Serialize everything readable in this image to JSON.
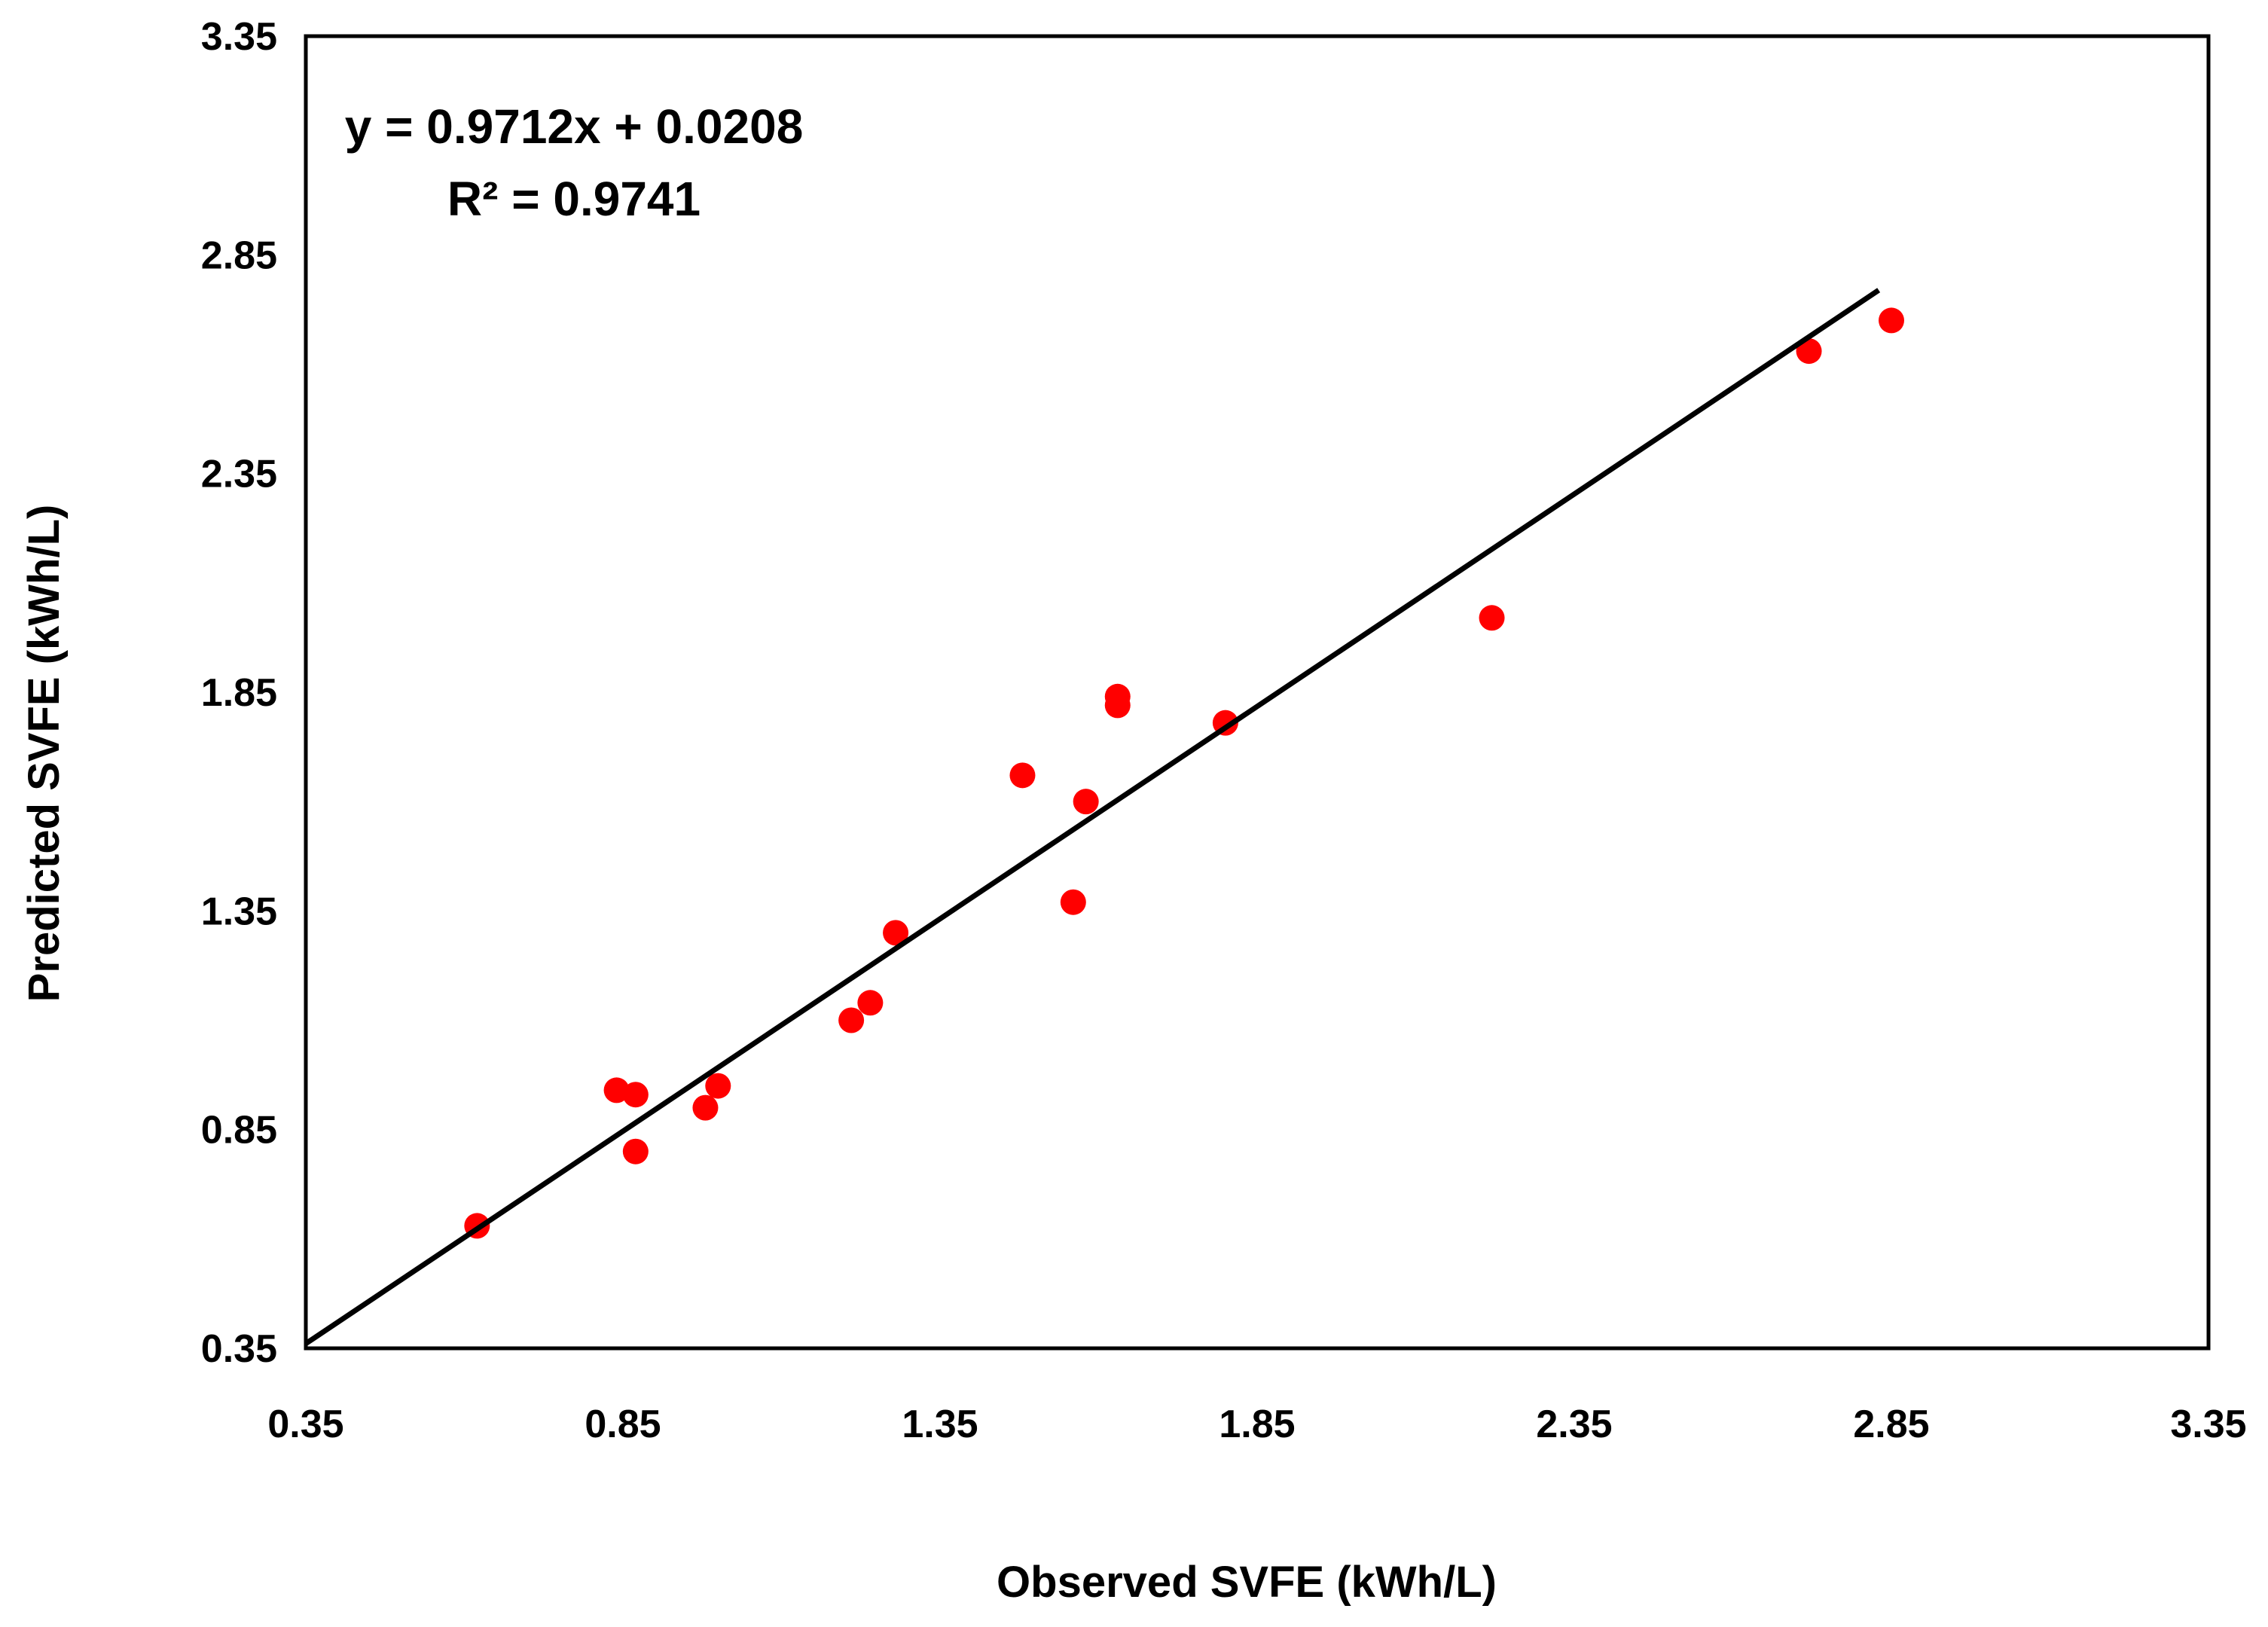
{
  "chart_data": {
    "type": "scatter",
    "xlabel": "Observed SVFE (kWh/L)",
    "ylabel": "Predicted SVFE (kWh/L)",
    "xlim": [
      0.35,
      3.35
    ],
    "ylim": [
      0.35,
      3.35
    ],
    "x_ticks": [
      "0.35",
      "0.85",
      "1.35",
      "1.85",
      "2.35",
      "2.85",
      "3.35"
    ],
    "y_ticks": [
      "0.35",
      "0.85",
      "1.35",
      "1.85",
      "2.35",
      "2.85",
      "3.35"
    ],
    "grid": false,
    "point_color": "#ff0000",
    "line_color": "#000000",
    "trendline": {
      "slope": 0.9712,
      "intercept": 0.0208,
      "x_range": [
        0.35,
        2.83
      ],
      "equation": "y = 0.9712x + 0.0208",
      "r_squared": "R² = 0.9741"
    },
    "series": [
      {
        "name": "SVFE",
        "points": [
          [
            0.62,
            0.63
          ],
          [
            0.84,
            0.94
          ],
          [
            0.87,
            0.93
          ],
          [
            0.87,
            0.8
          ],
          [
            0.98,
            0.9
          ],
          [
            1.0,
            0.95
          ],
          [
            1.21,
            1.1
          ],
          [
            1.24,
            1.14
          ],
          [
            1.28,
            1.3
          ],
          [
            1.48,
            1.66
          ],
          [
            1.56,
            1.37
          ],
          [
            1.58,
            1.6
          ],
          [
            1.63,
            1.84
          ],
          [
            1.63,
            1.82
          ],
          [
            1.8,
            1.78
          ],
          [
            2.22,
            2.02
          ],
          [
            2.72,
            2.63
          ],
          [
            2.85,
            2.7
          ]
        ]
      }
    ]
  }
}
